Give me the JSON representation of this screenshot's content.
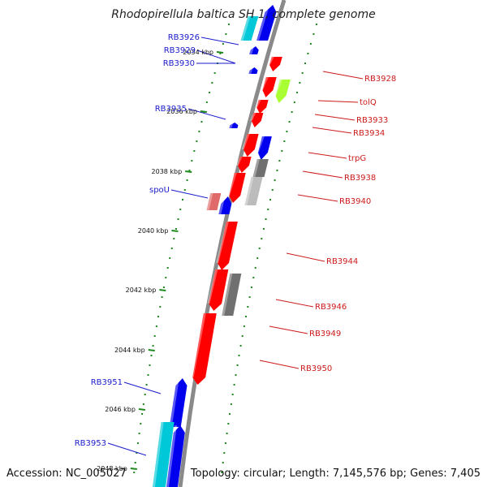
{
  "title": "Rhodopirellula baltica SH 1, complete genome",
  "footer": {
    "accession": "Accession: NC_005027",
    "topology": "Topology: circular; Length: 7,145,576 bp; Genes: 7,405"
  },
  "colors": {
    "backbone": "#8a8a8a",
    "tick": "#1e8a1e",
    "forward_label": "#1a1acc",
    "reverse_label": "#cc1a1a",
    "red_gene": "#ff0000",
    "blue_gene": "#0000ee",
    "cyan_gene": "#00c8d8",
    "green_gene": "#aaff33",
    "gray_gene": "#707070",
    "pink_gene": "#e06a6a"
  },
  "kbp_ticks": [
    "2034 kbp",
    "2036 kbp",
    "2038 kbp",
    "2040 kbp",
    "2042 kbp",
    "2044 kbp",
    "2046 kbp",
    "2048 kbp"
  ],
  "forward_labels": [
    "RB3926",
    "RB3929",
    "RB3930",
    "RB3935",
    "spoU",
    "RB3951",
    "RB3953"
  ],
  "reverse_labels": [
    "RB3928",
    "tolQ",
    "RB3933",
    "RB3934",
    "trpG",
    "RB3938",
    "RB3940",
    "RB3944",
    "RB3946",
    "RB3949",
    "RB3950"
  ]
}
